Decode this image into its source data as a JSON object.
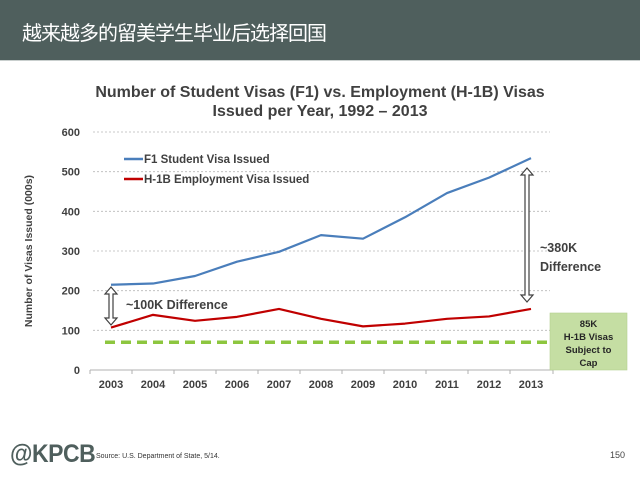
{
  "header": {
    "title": "越来越多的留美学生毕业后选择回国"
  },
  "chart_data": {
    "type": "line",
    "title": "Number of Student Visas (F1) vs. Employment (H-1B) Visas Issued per Year, 1992 – 2013",
    "title_line1": "Number of Student Visas (F1) vs. Employment (H-1B) Visas",
    "title_line2": "Issued per Year, 1992 – 2013",
    "xlabel": "",
    "ylabel": "Number of Visas Issued (000s)",
    "ylim": [
      0,
      600
    ],
    "yticks": [
      "0",
      "100",
      "200",
      "300",
      "400",
      "500",
      "600"
    ],
    "categories": [
      "2003",
      "2004",
      "2005",
      "2006",
      "2007",
      "2008",
      "2009",
      "2010",
      "2011",
      "2012",
      "2013"
    ],
    "series": [
      {
        "name": "F1 Student Visa Issued",
        "color": "#4a7ebb",
        "values": [
          215,
          218,
          237,
          273,
          298,
          340,
          331,
          385,
          446,
          485,
          534
        ]
      },
      {
        "name": "H-1B Employment Visa Issued",
        "color": "#c00000",
        "values": [
          107,
          139,
          124,
          134,
          154,
          129,
          110,
          117,
          129,
          135,
          154
        ]
      }
    ],
    "reference_line": {
      "value": 85,
      "color": "#8dc63f",
      "style": "dashed",
      "label": "85K H-1B Visas Subject to Cap"
    },
    "annotations": [
      {
        "text": "~100K Difference",
        "year": "2003"
      },
      {
        "text": "~380K Difference",
        "year": "2013"
      }
    ],
    "grid": true,
    "legend_position": "top-left"
  },
  "annotations": {
    "diff_2003": "~100K Difference",
    "diff_2013_line1": "~380K",
    "diff_2013_line2": "Difference",
    "cap_box": [
      "85K",
      "H-1B Visas",
      "Subject to",
      "Cap"
    ]
  },
  "footer": {
    "logo": "@KPCB",
    "source": "Source: U.S. Department of State, 5/14.",
    "page": "150"
  }
}
